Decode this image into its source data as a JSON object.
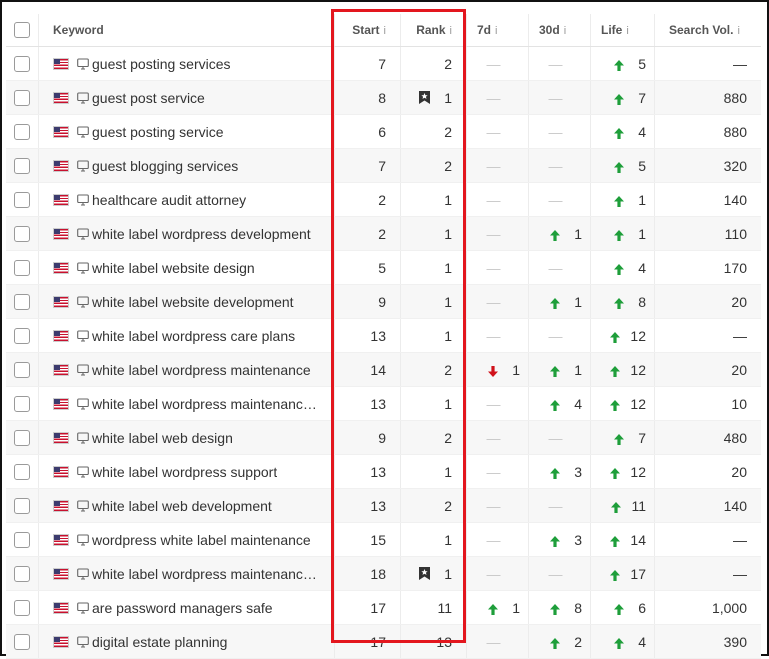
{
  "columns": {
    "keyword": "Keyword",
    "start": "Start",
    "rank": "Rank",
    "d7": "7d",
    "d30": "30d",
    "life": "Life",
    "search_vol": "Search Vol.",
    "info_glyph": "i"
  },
  "dash": "—",
  "rows": [
    {
      "keyword": "guest posting services",
      "start": "7",
      "rank": "2",
      "rank_flag": false,
      "d7": null,
      "d30": null,
      "life": {
        "dir": "up",
        "v": "5"
      },
      "sv": "—"
    },
    {
      "keyword": "guest post service",
      "start": "8",
      "rank": "1",
      "rank_flag": true,
      "d7": null,
      "d30": null,
      "life": {
        "dir": "up",
        "v": "7"
      },
      "sv": "880"
    },
    {
      "keyword": "guest posting service",
      "start": "6",
      "rank": "2",
      "rank_flag": false,
      "d7": null,
      "d30": null,
      "life": {
        "dir": "up",
        "v": "4"
      },
      "sv": "880"
    },
    {
      "keyword": "guest blogging services",
      "start": "7",
      "rank": "2",
      "rank_flag": false,
      "d7": null,
      "d30": null,
      "life": {
        "dir": "up",
        "v": "5"
      },
      "sv": "320"
    },
    {
      "keyword": "healthcare audit attorney",
      "start": "2",
      "rank": "1",
      "rank_flag": false,
      "d7": null,
      "d30": null,
      "life": {
        "dir": "up",
        "v": "1"
      },
      "sv": "140"
    },
    {
      "keyword": "white label wordpress development",
      "start": "2",
      "rank": "1",
      "rank_flag": false,
      "d7": null,
      "d30": {
        "dir": "up",
        "v": "1"
      },
      "life": {
        "dir": "up",
        "v": "1"
      },
      "sv": "110"
    },
    {
      "keyword": "white label website design",
      "start": "5",
      "rank": "1",
      "rank_flag": false,
      "d7": null,
      "d30": null,
      "life": {
        "dir": "up",
        "v": "4"
      },
      "sv": "170"
    },
    {
      "keyword": "white label website development",
      "start": "9",
      "rank": "1",
      "rank_flag": false,
      "d7": null,
      "d30": {
        "dir": "up",
        "v": "1"
      },
      "life": {
        "dir": "up",
        "v": "8"
      },
      "sv": "20"
    },
    {
      "keyword": "white label wordpress care plans",
      "start": "13",
      "rank": "1",
      "rank_flag": false,
      "d7": null,
      "d30": null,
      "life": {
        "dir": "up",
        "v": "12"
      },
      "sv": "—"
    },
    {
      "keyword": "white label wordpress maintenance",
      "start": "14",
      "rank": "2",
      "rank_flag": false,
      "d7": {
        "dir": "down",
        "v": "1"
      },
      "d30": {
        "dir": "up",
        "v": "1"
      },
      "life": {
        "dir": "up",
        "v": "12"
      },
      "sv": "20"
    },
    {
      "keyword": "white label wordpress maintenanc…",
      "start": "13",
      "rank": "1",
      "rank_flag": false,
      "d7": null,
      "d30": {
        "dir": "up",
        "v": "4"
      },
      "life": {
        "dir": "up",
        "v": "12"
      },
      "sv": "10"
    },
    {
      "keyword": "white label web design",
      "start": "9",
      "rank": "2",
      "rank_flag": false,
      "d7": null,
      "d30": null,
      "life": {
        "dir": "up",
        "v": "7"
      },
      "sv": "480"
    },
    {
      "keyword": "white label wordpress support",
      "start": "13",
      "rank": "1",
      "rank_flag": false,
      "d7": null,
      "d30": {
        "dir": "up",
        "v": "3"
      },
      "life": {
        "dir": "up",
        "v": "12"
      },
      "sv": "20"
    },
    {
      "keyword": "white label web development",
      "start": "13",
      "rank": "2",
      "rank_flag": false,
      "d7": null,
      "d30": null,
      "life": {
        "dir": "up",
        "v": "11"
      },
      "sv": "140"
    },
    {
      "keyword": "wordpress white label maintenance",
      "start": "15",
      "rank": "1",
      "rank_flag": false,
      "d7": null,
      "d30": {
        "dir": "up",
        "v": "3"
      },
      "life": {
        "dir": "up",
        "v": "14"
      },
      "sv": "—"
    },
    {
      "keyword": "white label wordpress maintenanc…",
      "start": "18",
      "rank": "1",
      "rank_flag": true,
      "d7": null,
      "d30": null,
      "life": {
        "dir": "up",
        "v": "17"
      },
      "sv": "—"
    },
    {
      "keyword": "are password managers safe",
      "start": "17",
      "rank": "11",
      "rank_flag": false,
      "d7": {
        "dir": "up",
        "v": "1"
      },
      "d30": {
        "dir": "up",
        "v": "8"
      },
      "life": {
        "dir": "up",
        "v": "6"
      },
      "sv": "1,000"
    },
    {
      "keyword": "digital estate planning",
      "start": "17",
      "rank": "13",
      "rank_flag": false,
      "d7": null,
      "d30": {
        "dir": "up",
        "v": "2"
      },
      "life": {
        "dir": "up",
        "v": "4"
      },
      "sv": "390"
    }
  ],
  "icons": {
    "up_arrow": "arrow-up-icon",
    "down_arrow": "arrow-down-icon",
    "device": "desktop-icon",
    "flag": "us-flag-icon",
    "rank_feature": "bookmark-star-icon"
  },
  "colors": {
    "up": "#1e9e3a",
    "down": "#d0121b",
    "highlight": "#e3161e"
  }
}
